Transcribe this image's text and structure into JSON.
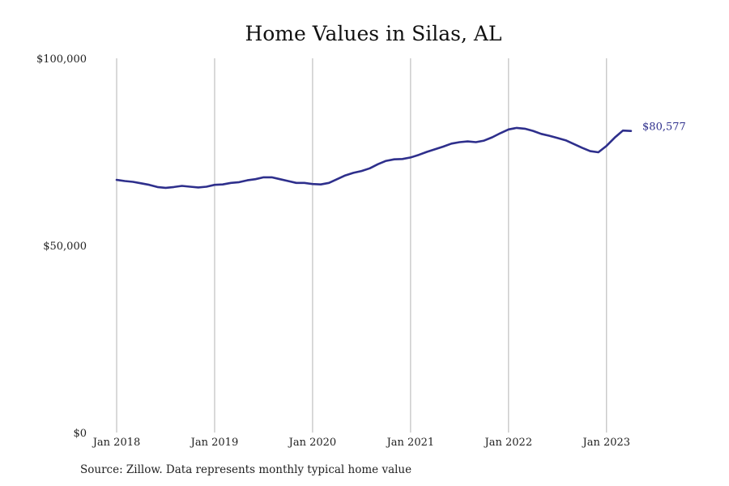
{
  "chart_data": {
    "type": "line",
    "title": "Home Values in Silas, AL",
    "source": "Source: Zillow. Data represents monthly typical home value",
    "xlabel": "",
    "ylabel": "",
    "ylim": [
      0,
      100000
    ],
    "y_ticks": [
      {
        "value": 0,
        "label": "$0"
      },
      {
        "value": 50000,
        "label": "$50,000"
      },
      {
        "value": 100000,
        "label": "$100,000"
      }
    ],
    "x_ticks": [
      {
        "month": 0,
        "label": "Jan 2018"
      },
      {
        "month": 12,
        "label": "Jan 2019"
      },
      {
        "month": 24,
        "label": "Jan 2020"
      },
      {
        "month": 36,
        "label": "Jan 2021"
      },
      {
        "month": 48,
        "label": "Jan 2022"
      },
      {
        "month": 60,
        "label": "Jan 2023"
      }
    ],
    "grid": "vertical",
    "color": "#2e2f8c",
    "end_label": "$80,577",
    "series": [
      {
        "values": [
          67500,
          67200,
          67000,
          66600,
          66200,
          65600,
          65400,
          65600,
          65900,
          65700,
          65500,
          65700,
          66200,
          66300,
          66700,
          66900,
          67400,
          67700,
          68200,
          68200,
          67700,
          67200,
          66700,
          66700,
          66400,
          66300,
          66700,
          67700,
          68700,
          69400,
          69900,
          70600,
          71700,
          72600,
          73000,
          73100,
          73500,
          74200,
          75000,
          75700,
          76400,
          77200,
          77600,
          77800,
          77600,
          78000,
          78900,
          80000,
          81000,
          81400,
          81200,
          80600,
          79800,
          79300,
          78700,
          78100,
          77100,
          76100,
          75200,
          74900,
          76600,
          78800,
          80700,
          80577
        ]
      }
    ]
  }
}
